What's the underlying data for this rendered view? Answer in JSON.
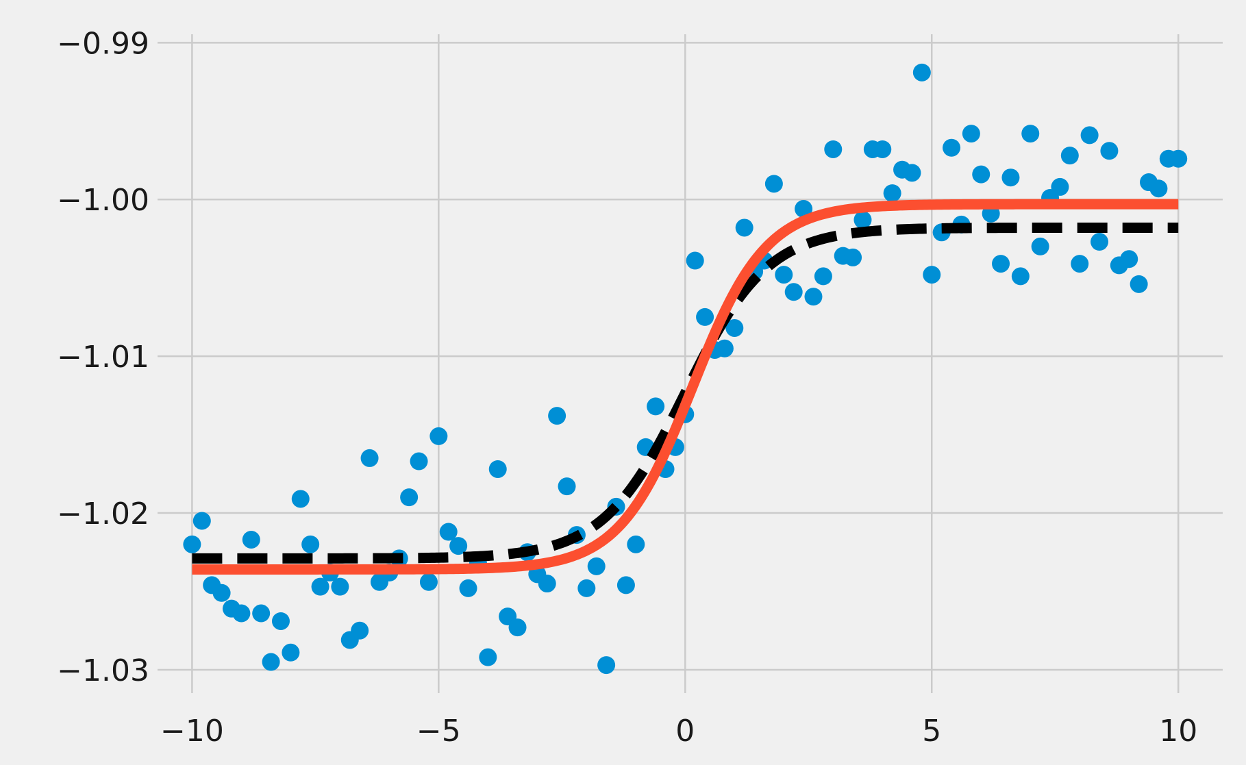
{
  "chart_data": {
    "type": "scatter",
    "title": "",
    "xlabel": "",
    "ylabel": "",
    "xlim": [
      -10.7,
      10.9
    ],
    "ylim": [
      -1.0314,
      -0.9885
    ],
    "xticks": [
      -10,
      -5,
      0,
      5,
      10
    ],
    "xtick_labels": [
      "−10",
      "−5",
      "0",
      "5",
      "10"
    ],
    "yticks": [
      -1.03,
      -1.02,
      -1.01,
      -1.0,
      -0.99
    ],
    "ytick_labels": [
      "−1.03",
      "−1.02",
      "−1.01",
      "−1.00",
      "−0.99"
    ],
    "grid": true,
    "legend": "none",
    "colors": {
      "background": "#f0f0f0",
      "grid": "#cbcbcb",
      "points": "#008fd5",
      "true_curve": "#000000",
      "fit_curve": "#fc4f30",
      "text": "#1a1a1a"
    },
    "series": [
      {
        "kind": "scatter",
        "color": "#008fd5",
        "x": [
          -10.0,
          -9.8,
          -9.6,
          -9.4,
          -9.2,
          -9.0,
          -8.8,
          -8.6,
          -8.4,
          -8.2,
          -8.0,
          -7.8,
          -7.6,
          -7.4,
          -7.2,
          -7.0,
          -6.8,
          -6.6,
          -6.4,
          -6.2,
          -6.0,
          -5.8,
          -5.6,
          -5.4,
          -5.2,
          -5.0,
          -4.8,
          -4.6,
          -4.4,
          -4.2,
          -4.0,
          -3.8,
          -3.6,
          -3.4,
          -3.2,
          -3.0,
          -2.8,
          -2.6,
          -2.4,
          -2.2,
          -2.0,
          -1.8,
          -1.6,
          -1.4,
          -1.2,
          -1.0,
          -0.8,
          -0.6,
          -0.4,
          -0.2,
          0.0,
          0.2,
          0.4,
          0.6,
          0.8,
          1.0,
          1.2,
          1.4,
          1.6,
          1.8,
          2.0,
          2.2,
          2.4,
          2.6,
          2.8,
          3.0,
          3.2,
          3.4,
          3.6,
          3.8,
          4.0,
          4.2,
          4.4,
          4.6,
          4.8,
          5.0,
          5.2,
          5.4,
          5.6,
          5.8,
          6.0,
          6.2,
          6.4,
          6.6,
          6.8,
          7.0,
          7.2,
          7.4,
          7.6,
          7.8,
          8.0,
          8.2,
          8.4,
          8.6,
          8.8,
          9.0,
          9.2,
          9.4,
          9.6,
          9.8,
          10.0
        ],
        "y": [
          -1.022,
          -1.0205,
          -1.0246,
          -1.0251,
          -1.0261,
          -1.0264,
          -1.0217,
          -1.0264,
          -1.0295,
          -1.0269,
          -1.0289,
          -1.0191,
          -1.022,
          -1.0247,
          -1.0238,
          -1.0247,
          -1.0281,
          -1.0275,
          -1.0165,
          -1.0244,
          -1.0238,
          -1.0229,
          -1.019,
          -1.0167,
          -1.0244,
          -1.0151,
          -1.0212,
          -1.0221,
          -1.0248,
          -1.0232,
          -1.0292,
          -1.0172,
          -1.0266,
          -1.0273,
          -1.0225,
          -1.0239,
          -1.0245,
          -1.0138,
          -1.0183,
          -1.0214,
          -1.0248,
          -1.0234,
          -1.0297,
          -1.0196,
          -1.0246,
          -1.022,
          -1.0158,
          -1.0132,
          -1.0172,
          -1.0158,
          -1.0137,
          -1.0039,
          -1.0075,
          -1.0096,
          -1.0095,
          -1.0082,
          -1.0018,
          -1.0046,
          -1.0039,
          -0.999,
          -1.0048,
          -1.0059,
          -1.0006,
          -1.0062,
          -1.0049,
          -0.9968,
          -1.0036,
          -1.0037,
          -1.0013,
          -0.9968,
          -0.9968,
          -0.9996,
          -0.9981,
          -0.9983,
          -0.9919,
          -1.0048,
          -1.0021,
          -0.9967,
          -1.0016,
          -0.9958,
          -0.9984,
          -1.0009,
          -1.0041,
          -0.9986,
          -1.0049,
          -0.9958,
          -1.003,
          -0.9999,
          -0.9992,
          -0.9972,
          -1.0041,
          -0.9959,
          -1.0027,
          -0.9969,
          -1.0042,
          -1.0038,
          -1.0054,
          -0.9989,
          -0.9993,
          -0.9974,
          -0.9974
        ]
      },
      {
        "kind": "line",
        "style": "dashed",
        "color": "#000000",
        "function": "logistic",
        "x_range": [
          -10,
          10
        ],
        "lower": -1.0229,
        "upper": -1.0018,
        "midpoint": 0,
        "steepness": 1.2
      },
      {
        "kind": "line",
        "style": "solid",
        "color": "#fc4f30",
        "function": "logistic",
        "x_range": [
          -10,
          10
        ],
        "lower": -1.0236,
        "upper": -1.0003,
        "midpoint": 0.15,
        "steepness": 1.35
      }
    ]
  }
}
